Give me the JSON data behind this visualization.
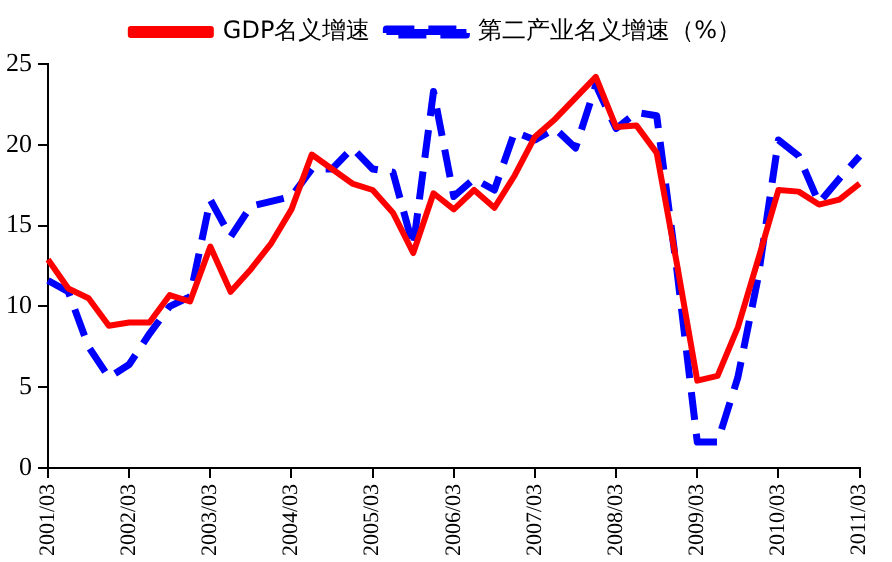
{
  "chart_data": {
    "type": "line",
    "categories": [
      "2001/03",
      null,
      null,
      null,
      "2002/03",
      null,
      null,
      null,
      "2003/03",
      null,
      null,
      null,
      "2004/03",
      null,
      null,
      null,
      "2005/03",
      null,
      null,
      null,
      "2006/03",
      null,
      null,
      null,
      "2007/03",
      null,
      null,
      null,
      "2008/03",
      null,
      null,
      null,
      "2009/03",
      null,
      null,
      null,
      "2010/03",
      null,
      null,
      null,
      "2011/03"
    ],
    "series": [
      {
        "name": "GDP名义增速",
        "color": "#ff0000",
        "line_style": "solid",
        "values": [
          12.9,
          11.1,
          10.5,
          8.8,
          9.0,
          9.0,
          10.7,
          10.3,
          13.7,
          10.9,
          12.3,
          13.9,
          16.0,
          19.4,
          18.5,
          17.6,
          17.2,
          15.8,
          13.3,
          17.0,
          16.0,
          17.2,
          16.1,
          18.1,
          20.5,
          21.6,
          22.9,
          24.2,
          21.1,
          21.2,
          19.5,
          12.6,
          5.4,
          5.7,
          8.7,
          12.9,
          17.2,
          17.1,
          16.3,
          16.6,
          17.6
        ]
      },
      {
        "name": "第二产业名义增速（%）",
        "color": "#0000ff",
        "line_style": "dashed",
        "values": [
          11.6,
          10.9,
          7.5,
          5.6,
          6.4,
          8.3,
          10.0,
          10.6,
          16.6,
          14.3,
          16.2,
          16.5,
          16.8,
          18.5,
          18.5,
          19.8,
          18.5,
          18.3,
          13.7,
          23.3,
          16.8,
          17.9,
          17.2,
          20.8,
          20.3,
          21.0,
          19.8,
          23.7,
          21.0,
          22.0,
          21.8,
          12.2,
          1.6,
          1.6,
          5.6,
          11.8,
          20.3,
          19.3,
          16.4,
          17.9,
          19.3
        ]
      }
    ],
    "ylim": [
      0,
      25
    ],
    "yticks": [
      0,
      5,
      10,
      15,
      20,
      25
    ],
    "grid": false,
    "legend": "top",
    "marker": "none"
  }
}
